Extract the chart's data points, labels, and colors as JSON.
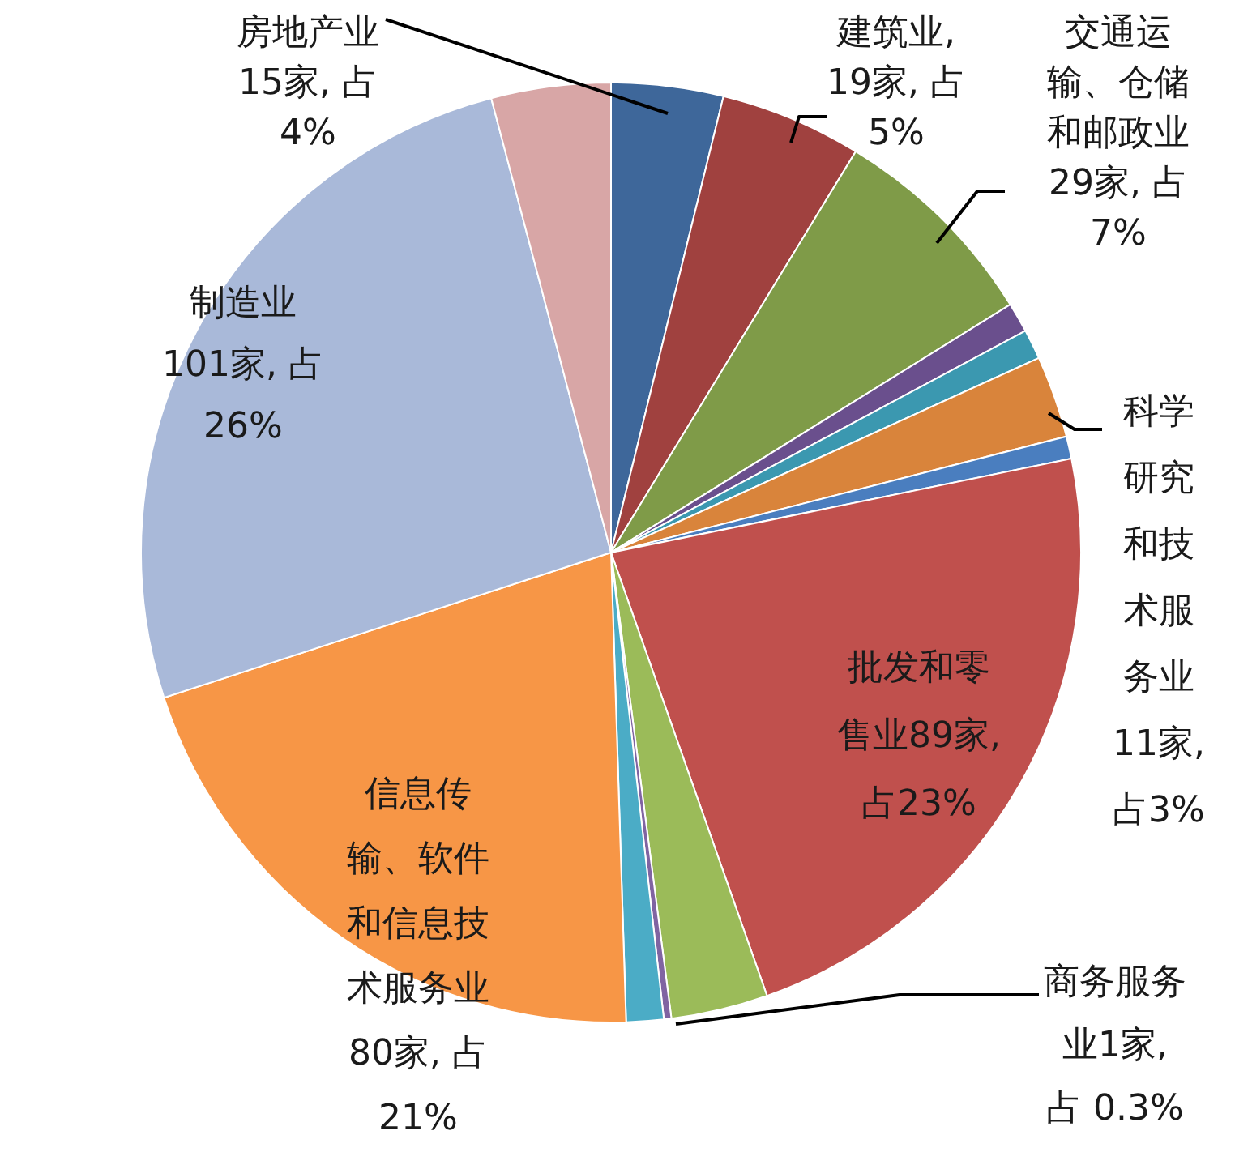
{
  "chart_data": {
    "type": "pie",
    "categories": [
      "房地产业 15家, 占 4%",
      "建筑业, 19家, 占 5%",
      "交通运输、仓储和邮政业 29家, 占 7%",
      null,
      null,
      "科学研究和技术服务业 11家, 占3%",
      null,
      "批发和零售业89家, 占23%",
      null,
      "商务服务业1家, 占 0.3%",
      null,
      "信息传输、软件和信息技术服务业 80家, 占 21%",
      "制造业 101家, 占 26%",
      null
    ],
    "values": [
      15,
      19,
      29,
      4,
      4,
      11,
      3,
      89,
      13,
      1,
      5,
      80,
      101,
      16
    ],
    "colors": [
      "#3e679a",
      "#a0413f",
      "#7f9b48",
      "#6a4f8d",
      "#3b98b0",
      "#d9843b",
      "#4a7ebf",
      "#c0504d",
      "#9bbb59",
      "#8064a2",
      "#4bacc6",
      "#f79646",
      "#a9b9d9",
      "#d8a6a6"
    ]
  }
}
